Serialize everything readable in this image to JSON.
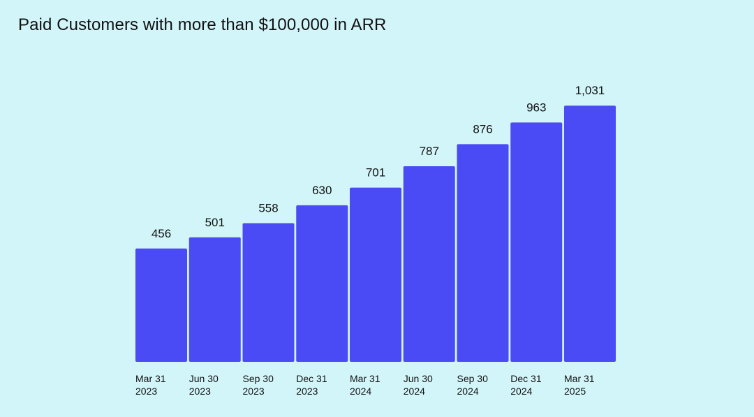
{
  "colors": {
    "background": "#d2f5f9",
    "bar": "#4b4bf5",
    "text": "#111111"
  },
  "chart_data": {
    "type": "bar",
    "title": "Paid Customers with more than $100,000 in ARR",
    "xlabel": "",
    "ylabel": "",
    "categories": [
      "Mar 31 2023",
      "Jun 30 2023",
      "Sep 30 2023",
      "Dec 31 2023",
      "Mar 31 2024",
      "Jun 30 2024",
      "Sep 30 2024",
      "Dec 31 2024",
      "Mar 31 2025"
    ],
    "category_lines": [
      [
        "Mar 31",
        "2023"
      ],
      [
        "Jun 30",
        "2023"
      ],
      [
        "Sep 30",
        "2023"
      ],
      [
        "Dec 31",
        "2023"
      ],
      [
        "Mar 31",
        "2024"
      ],
      [
        "Jun 30",
        "2024"
      ],
      [
        "Sep 30",
        "2024"
      ],
      [
        "Dec 31",
        "2024"
      ],
      [
        "Mar 31",
        "2025"
      ]
    ],
    "values": [
      456,
      501,
      558,
      630,
      701,
      787,
      876,
      963,
      1031
    ],
    "data_labels": [
      "456",
      "501",
      "558",
      "630",
      "701",
      "787",
      "876",
      "963",
      "1,031"
    ],
    "ylim": [
      0,
      1040
    ],
    "grid": false,
    "legend": "none"
  }
}
